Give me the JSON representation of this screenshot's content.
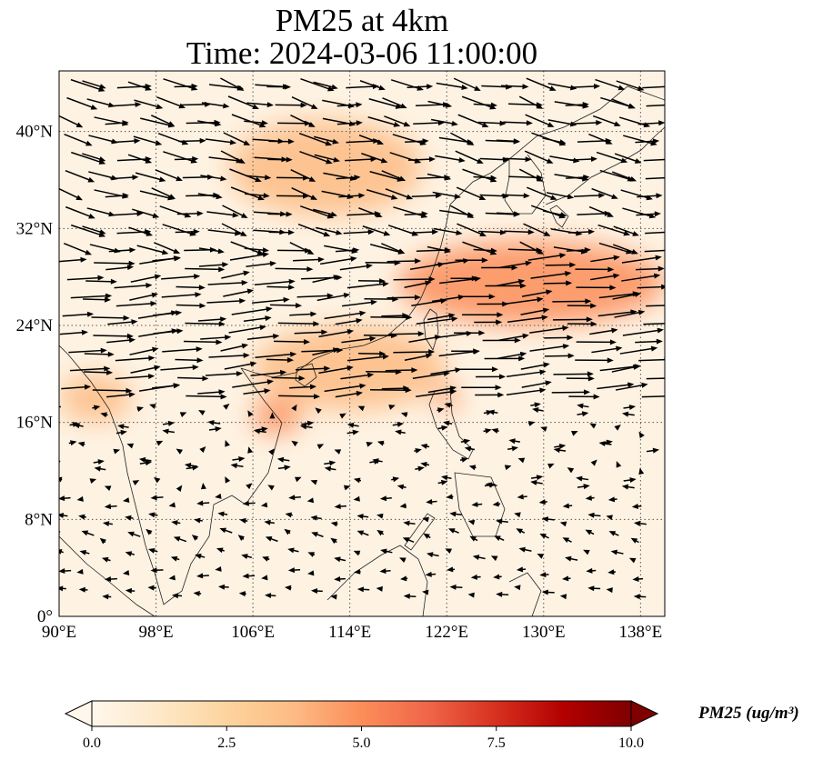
{
  "title": {
    "line1": "PM25 at 4km",
    "line2": "Time: 2024-03-06 11:00:00"
  },
  "map": {
    "projection": "PlateCarree",
    "lon_range": [
      90,
      140
    ],
    "lat_range": [
      0,
      45
    ],
    "lon_ticks": [
      "90°E",
      "98°E",
      "106°E",
      "114°E",
      "122°E",
      "130°E",
      "138°E"
    ],
    "lat_ticks": [
      "0°",
      "8°N",
      "16°N",
      "24°N",
      "32°N",
      "40°N"
    ],
    "lon_tick_values": [
      90,
      98,
      106,
      114,
      122,
      130,
      138
    ],
    "lat_tick_values": [
      0,
      8,
      16,
      24,
      32,
      40
    ],
    "gridlines": "dotted",
    "wind_vectors": "shown"
  },
  "field": {
    "variable": "PM25",
    "plumes": [
      {
        "region": "east-china-sea-band",
        "lon": [
          118,
          140
        ],
        "lat": [
          24,
          31
        ],
        "level": 5.5
      },
      {
        "region": "north-china",
        "lon": [
          104,
          120
        ],
        "lat": [
          33,
          41
        ],
        "level": 3.5
      },
      {
        "region": "south-china-coast",
        "lon": [
          106,
          122
        ],
        "lat": [
          17,
          24
        ],
        "level": 4.0
      },
      {
        "region": "north-luzon",
        "lon": [
          121,
          123
        ],
        "lat": [
          17,
          19
        ],
        "level": 5.0
      },
      {
        "region": "myanmar-bay",
        "lon": [
          90,
          96
        ],
        "lat": [
          16,
          20
        ],
        "level": 4.0
      },
      {
        "region": "vietnam-coast",
        "lon": [
          106,
          110
        ],
        "lat": [
          15,
          18
        ],
        "level": 5.0
      }
    ]
  },
  "colorbar": {
    "colormap": "OrRd",
    "colors": [
      "#fff7ec",
      "#fee8c8",
      "#fdd49e",
      "#fdbb84",
      "#fc8d59",
      "#ef6548",
      "#d7301f",
      "#b30000",
      "#7f0000"
    ],
    "min": 0.0,
    "max": 10.0,
    "ticks": [
      "0.0",
      "2.5",
      "5.0",
      "7.5",
      "10.0"
    ],
    "tick_values": [
      0,
      2.5,
      5,
      7.5,
      10
    ],
    "extend": "both",
    "label": "PM25 (ug/m³)"
  }
}
